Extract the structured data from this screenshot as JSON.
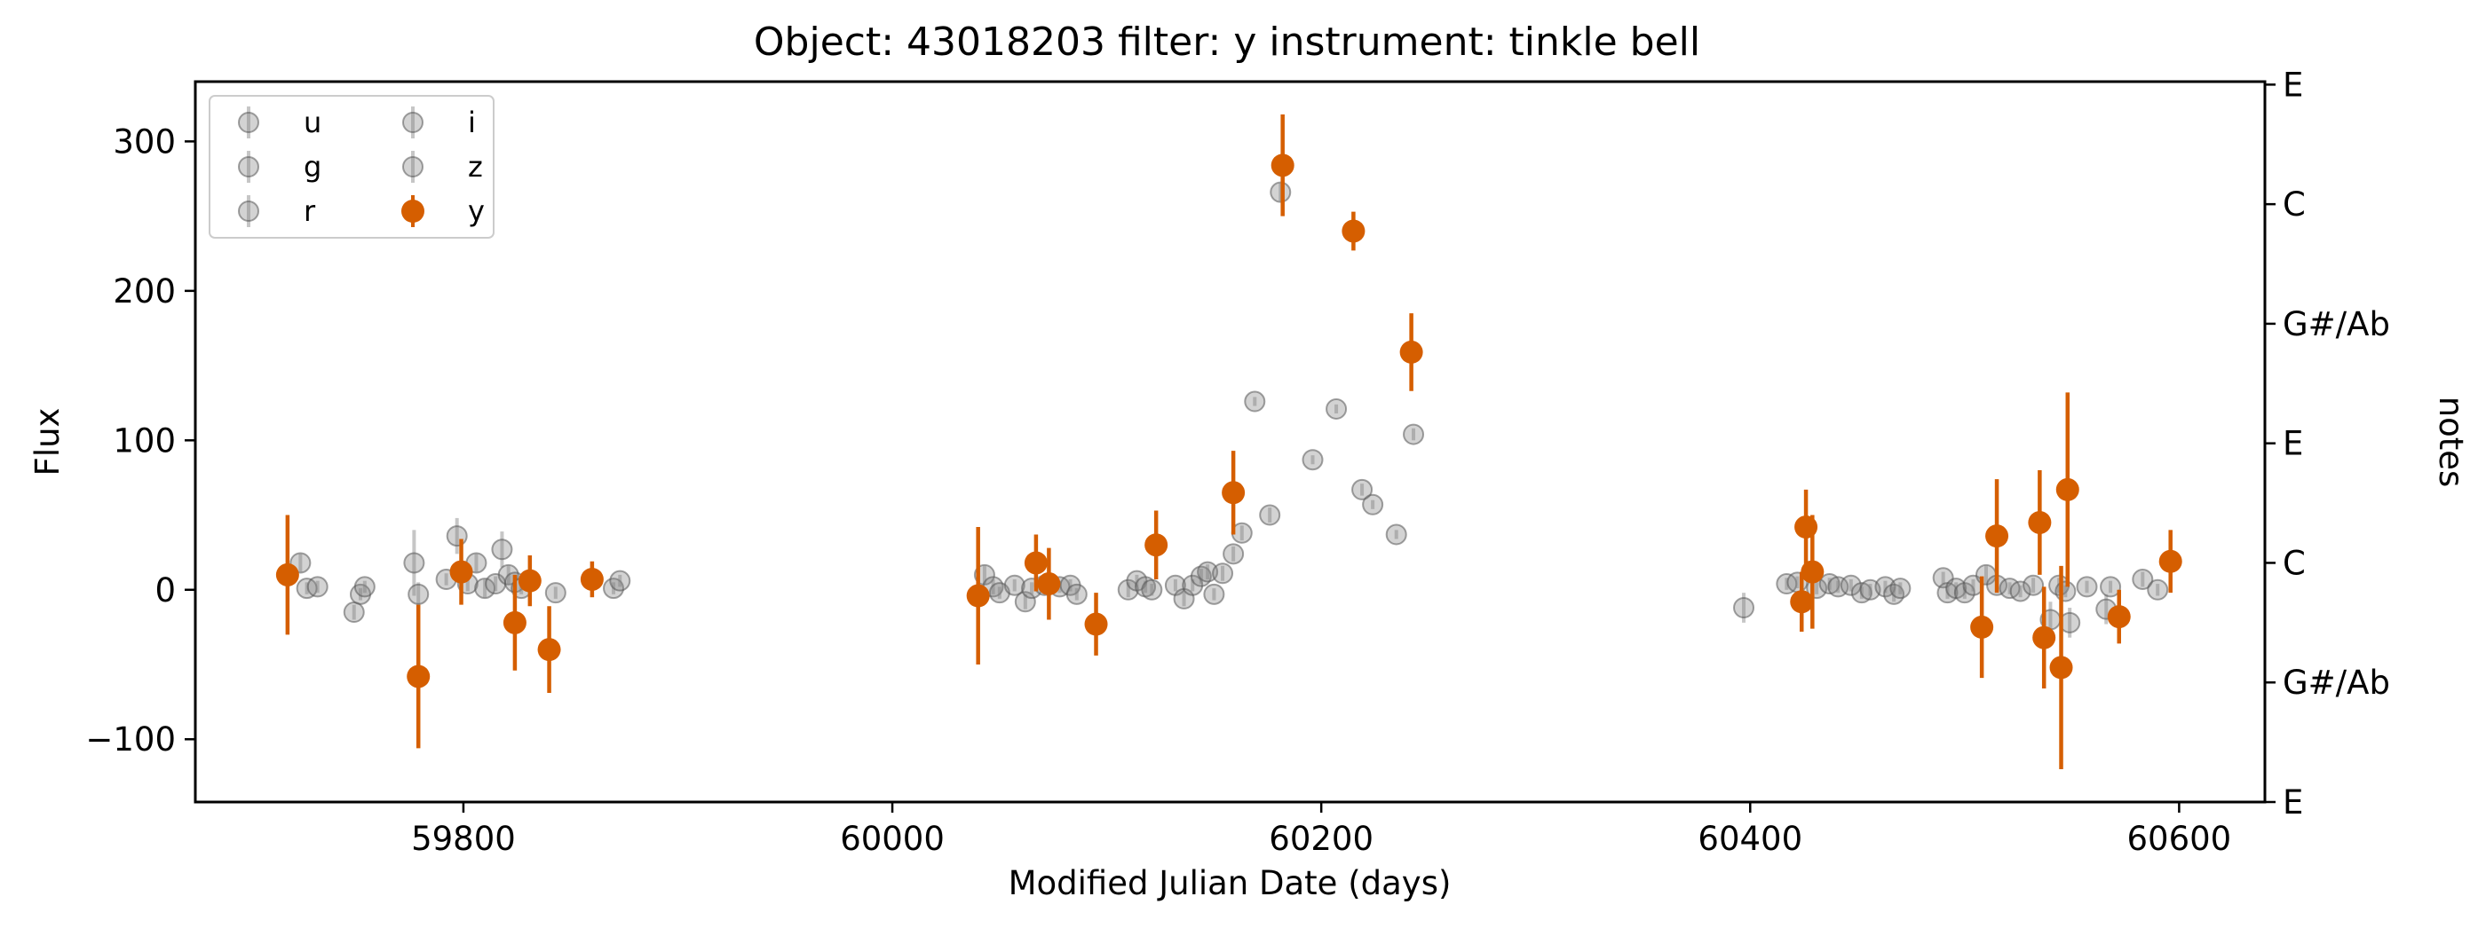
{
  "chart_data": {
    "type": "scatter",
    "title": "Object: 43018203 filter: y instrument: tinkle bell",
    "xlabel": "Modified Julian Date (days)",
    "ylabel": "Flux",
    "y2label": "notes",
    "xlim": [
      59675,
      60640
    ],
    "ylim": [
      -142,
      340
    ],
    "x_ticks": [
      59800,
      60000,
      60200,
      60400,
      60600
    ],
    "y_ticks": [
      -100,
      0,
      100,
      200,
      300
    ],
    "y_tick_labels": [
      "−100",
      "0",
      "100",
      "200",
      "300"
    ],
    "note_ticks": [
      {
        "label": "E",
        "y": -142
      },
      {
        "label": "G#/Ab",
        "y": -62
      },
      {
        "label": "C",
        "y": 18
      },
      {
        "label": "E",
        "y": 98
      },
      {
        "label": "G#/Ab",
        "y": 178
      },
      {
        "label": "C",
        "y": 258
      },
      {
        "label": "E",
        "y": 338
      }
    ],
    "legend_position": "top-left",
    "grid": false,
    "highlight_filter": "y",
    "highlight_color": "#d55e00",
    "other_color": "#808080",
    "legend": [
      {
        "name": "u",
        "highlight": false
      },
      {
        "name": "g",
        "highlight": false
      },
      {
        "name": "r",
        "highlight": false
      },
      {
        "name": "i",
        "highlight": false
      },
      {
        "name": "z",
        "highlight": false
      },
      {
        "name": "y",
        "highlight": true
      }
    ],
    "series": [
      {
        "name": "y",
        "points": [
          {
            "x": 59718,
            "y": 10,
            "err": 40
          },
          {
            "x": 59779,
            "y": -58,
            "err": 48
          },
          {
            "x": 59799,
            "y": 12,
            "err": 22
          },
          {
            "x": 59824,
            "y": -22,
            "err": 32
          },
          {
            "x": 59831,
            "y": 6,
            "err": 17
          },
          {
            "x": 59840,
            "y": -40,
            "err": 29
          },
          {
            "x": 59860,
            "y": 7,
            "err": 12
          },
          {
            "x": 60040,
            "y": -4,
            "err": 46
          },
          {
            "x": 60067,
            "y": 18,
            "err": 19
          },
          {
            "x": 60073,
            "y": 4,
            "err": 24
          },
          {
            "x": 60095,
            "y": -23,
            "err": 21
          },
          {
            "x": 60123,
            "y": 30,
            "err": 23
          },
          {
            "x": 60159,
            "y": 65,
            "err": 28
          },
          {
            "x": 60182,
            "y": 284,
            "err": 34
          },
          {
            "x": 60215,
            "y": 240,
            "err": 13
          },
          {
            "x": 60242,
            "y": 159,
            "err": 26
          },
          {
            "x": 60424,
            "y": -8,
            "err": 20
          },
          {
            "x": 60426,
            "y": 42,
            "err": 25
          },
          {
            "x": 60429,
            "y": 12,
            "err": 38
          },
          {
            "x": 60508,
            "y": -25,
            "err": 34
          },
          {
            "x": 60515,
            "y": 36,
            "err": 38
          },
          {
            "x": 60535,
            "y": 45,
            "err": 35
          },
          {
            "x": 60537,
            "y": -32,
            "err": 34
          },
          {
            "x": 60545,
            "y": -52,
            "err": 68
          },
          {
            "x": 60548,
            "y": 67,
            "err": 65
          },
          {
            "x": 60572,
            "y": -18,
            "err": 18
          },
          {
            "x": 60596,
            "y": 19,
            "err": 21
          }
        ]
      },
      {
        "name": "other",
        "points": [
          {
            "x": 59724,
            "y": 18,
            "err": 6
          },
          {
            "x": 59727,
            "y": 1,
            "err": 4
          },
          {
            "x": 59732,
            "y": 2,
            "err": 4
          },
          {
            "x": 59749,
            "y": -15,
            "err": 5
          },
          {
            "x": 59752,
            "y": -3,
            "err": 4
          },
          {
            "x": 59754,
            "y": 2,
            "err": 4
          },
          {
            "x": 59777,
            "y": 18,
            "err": 22
          },
          {
            "x": 59779,
            "y": -3,
            "err": 8
          },
          {
            "x": 59792,
            "y": 7,
            "err": 4
          },
          {
            "x": 59797,
            "y": 36,
            "err": 12
          },
          {
            "x": 59802,
            "y": 4,
            "err": 5
          },
          {
            "x": 59806,
            "y": 18,
            "err": 6
          },
          {
            "x": 59810,
            "y": 1,
            "err": 6
          },
          {
            "x": 59815,
            "y": 4,
            "err": 5
          },
          {
            "x": 59818,
            "y": 27,
            "err": 12
          },
          {
            "x": 59821,
            "y": 10,
            "err": 6
          },
          {
            "x": 59824,
            "y": 5,
            "err": 4
          },
          {
            "x": 59827,
            "y": 1,
            "err": 4
          },
          {
            "x": 59843,
            "y": -2,
            "err": 4
          },
          {
            "x": 59870,
            "y": 1,
            "err": 4
          },
          {
            "x": 59873,
            "y": 6,
            "err": 4
          },
          {
            "x": 60043,
            "y": 10,
            "err": 6
          },
          {
            "x": 60047,
            "y": 2,
            "err": 5
          },
          {
            "x": 60050,
            "y": -2,
            "err": 4
          },
          {
            "x": 60057,
            "y": 3,
            "err": 4
          },
          {
            "x": 60062,
            "y": -8,
            "err": 5
          },
          {
            "x": 60065,
            "y": 1,
            "err": 4
          },
          {
            "x": 60071,
            "y": 3,
            "err": 4
          },
          {
            "x": 60078,
            "y": 2,
            "err": 4
          },
          {
            "x": 60083,
            "y": 3,
            "err": 4
          },
          {
            "x": 60086,
            "y": -3,
            "err": 4
          },
          {
            "x": 60110,
            "y": 0,
            "err": 5
          },
          {
            "x": 60114,
            "y": 6,
            "err": 4
          },
          {
            "x": 60118,
            "y": 2,
            "err": 4
          },
          {
            "x": 60121,
            "y": 0,
            "err": 4
          },
          {
            "x": 60132,
            "y": 3,
            "err": 4
          },
          {
            "x": 60136,
            "y": -6,
            "err": 5
          },
          {
            "x": 60140,
            "y": 3,
            "err": 4
          },
          {
            "x": 60144,
            "y": 9,
            "err": 5
          },
          {
            "x": 60147,
            "y": 12,
            "err": 5
          },
          {
            "x": 60150,
            "y": -3,
            "err": 4
          },
          {
            "x": 60154,
            "y": 11,
            "err": 5
          },
          {
            "x": 60159,
            "y": 24,
            "err": 5
          },
          {
            "x": 60163,
            "y": 38,
            "err": 5
          },
          {
            "x": 60169,
            "y": 126,
            "err": 3
          },
          {
            "x": 60176,
            "y": 50,
            "err": 5
          },
          {
            "x": 60181,
            "y": 266,
            "err": 6
          },
          {
            "x": 60196,
            "y": 87,
            "err": 3
          },
          {
            "x": 60207,
            "y": 121,
            "err": 3
          },
          {
            "x": 60219,
            "y": 67,
            "err": 4
          },
          {
            "x": 60224,
            "y": 57,
            "err": 3
          },
          {
            "x": 60235,
            "y": 37,
            "err": 3
          },
          {
            "x": 60243,
            "y": 104,
            "err": 4
          },
          {
            "x": 60397,
            "y": -12,
            "err": 10
          },
          {
            "x": 60417,
            "y": 4,
            "err": 4
          },
          {
            "x": 60422,
            "y": 5,
            "err": 4
          },
          {
            "x": 60431,
            "y": 1,
            "err": 4
          },
          {
            "x": 60437,
            "y": 4,
            "err": 4
          },
          {
            "x": 60441,
            "y": 2,
            "err": 4
          },
          {
            "x": 60447,
            "y": 3,
            "err": 4
          },
          {
            "x": 60452,
            "y": -2,
            "err": 4
          },
          {
            "x": 60456,
            "y": 0,
            "err": 4
          },
          {
            "x": 60463,
            "y": 2,
            "err": 4
          },
          {
            "x": 60467,
            "y": -3,
            "err": 5
          },
          {
            "x": 60470,
            "y": 1,
            "err": 4
          },
          {
            "x": 60490,
            "y": 8,
            "err": 4
          },
          {
            "x": 60492,
            "y": -2,
            "err": 4
          },
          {
            "x": 60496,
            "y": 1,
            "err": 4
          },
          {
            "x": 60500,
            "y": -2,
            "err": 4
          },
          {
            "x": 60504,
            "y": 3,
            "err": 4
          },
          {
            "x": 60510,
            "y": 10,
            "err": 6
          },
          {
            "x": 60515,
            "y": 3,
            "err": 4
          },
          {
            "x": 60521,
            "y": 1,
            "err": 4
          },
          {
            "x": 60526,
            "y": -1,
            "err": 4
          },
          {
            "x": 60532,
            "y": 3,
            "err": 5
          },
          {
            "x": 60540,
            "y": -20,
            "err": 12
          },
          {
            "x": 60544,
            "y": 3,
            "err": 5
          },
          {
            "x": 60547,
            "y": -1,
            "err": 4
          },
          {
            "x": 60549,
            "y": -22,
            "err": 10
          },
          {
            "x": 60557,
            "y": 2,
            "err": 4
          },
          {
            "x": 60566,
            "y": -13,
            "err": 10
          },
          {
            "x": 60568,
            "y": 2,
            "err": 4
          },
          {
            "x": 60583,
            "y": 7,
            "err": 5
          },
          {
            "x": 60590,
            "y": 0,
            "err": 4
          }
        ]
      }
    ]
  }
}
